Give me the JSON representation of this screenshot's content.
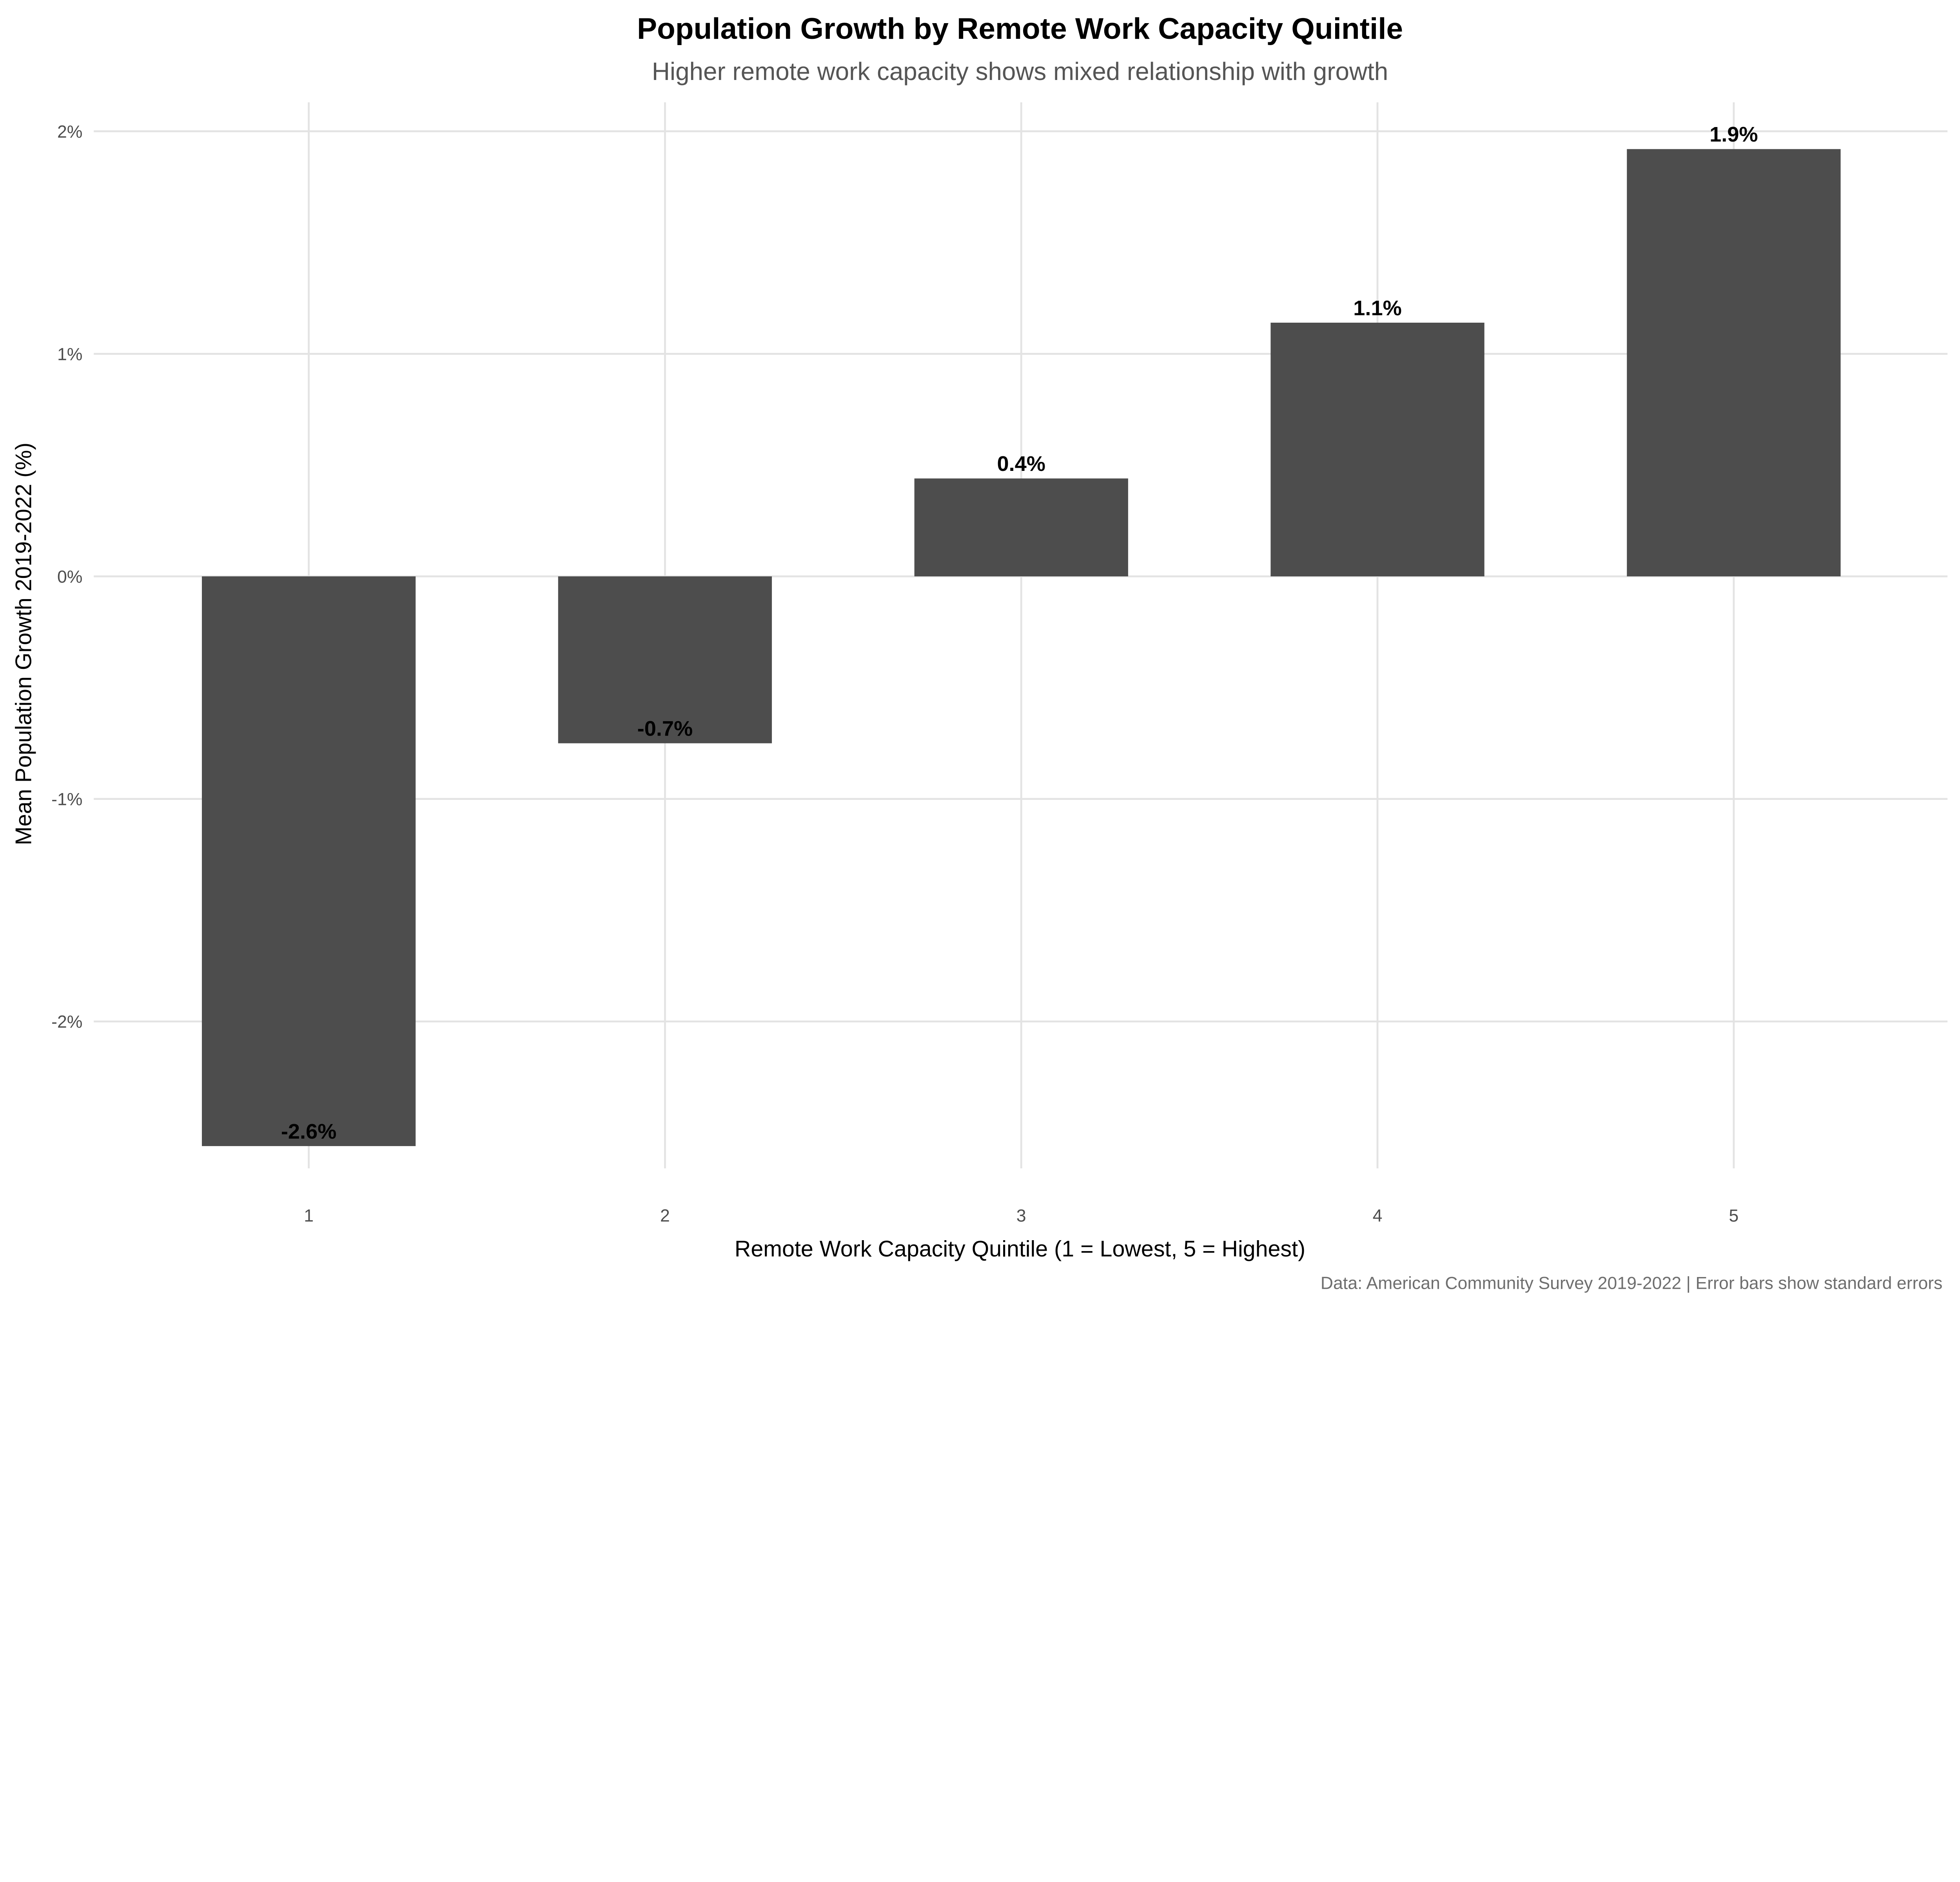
{
  "chart_data": {
    "type": "bar",
    "title": "Population Growth by Remote Work Capacity Quintile",
    "subtitle": "Higher remote work capacity shows mixed relationship with growth",
    "xlabel": "Remote Work Capacity Quintile (1 = Lowest, 5 = Highest)",
    "ylabel": "Mean Population Growth 2019-2022 (%)",
    "caption": "Data: American Community Survey 2019-2022 | Error bars show standard errors",
    "categories": [
      "1",
      "2",
      "3",
      "4",
      "5"
    ],
    "values": [
      -2.56,
      -0.75,
      0.44,
      1.14,
      1.92
    ],
    "data_labels": [
      "-2.6%",
      "-0.7%",
      "0.4%",
      "1.1%",
      "1.9%"
    ],
    "yticks": [
      -2,
      -1,
      0,
      1,
      2
    ],
    "ytick_labels": [
      "-2%",
      "-1%",
      "0%",
      "1%",
      "2%"
    ],
    "ylim": [
      -2.66,
      2.13
    ],
    "grid": true,
    "bar_color": "#4d4d4d",
    "legend": "none"
  }
}
